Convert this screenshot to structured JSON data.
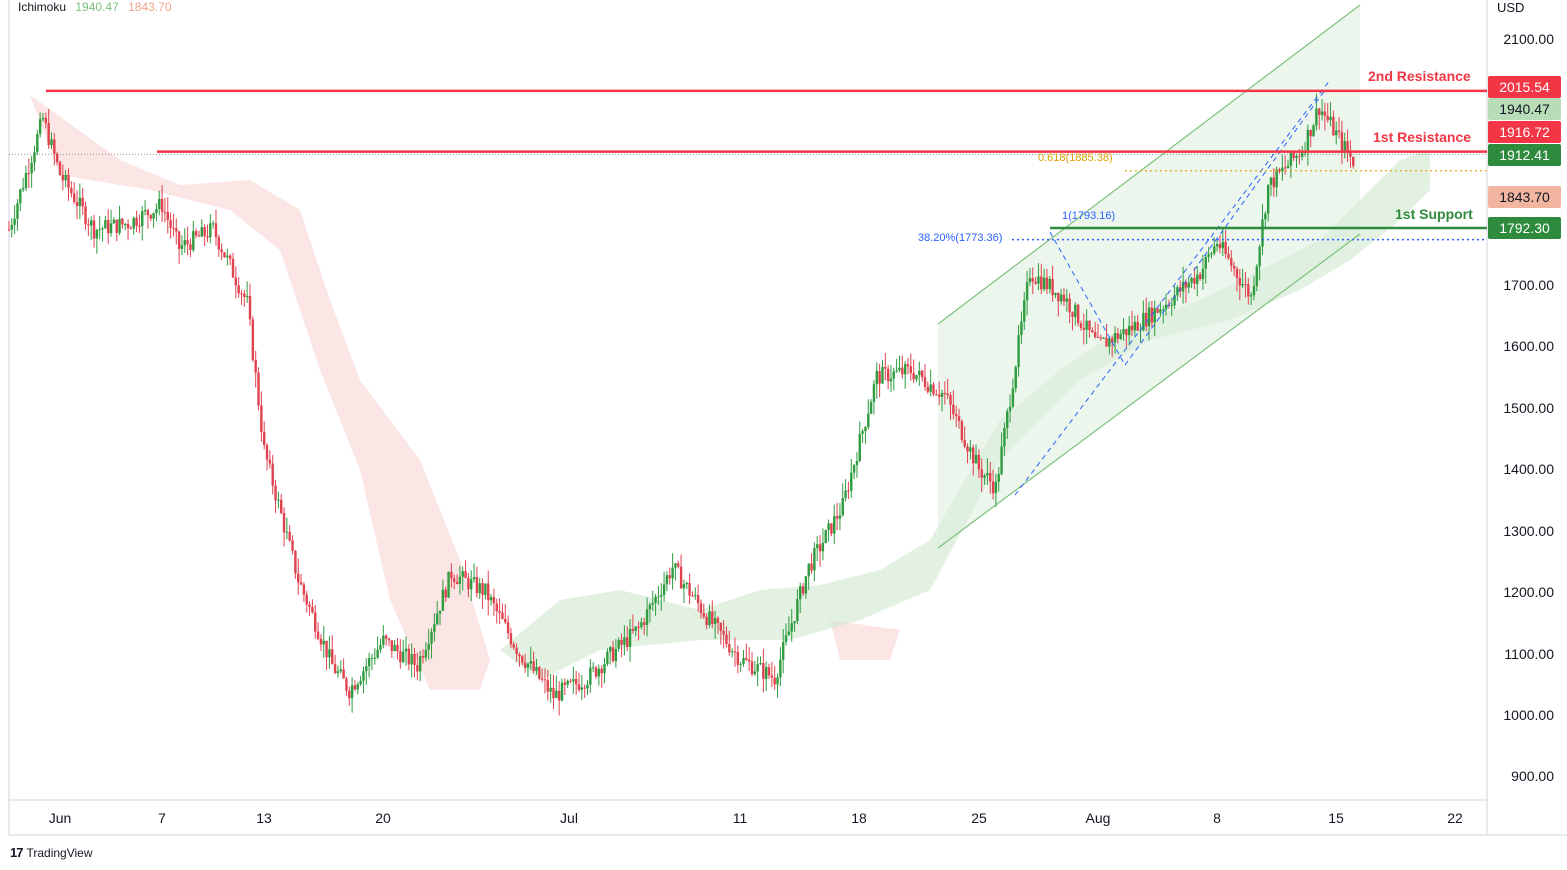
{
  "indicator": {
    "name": "Ichimoku",
    "value1": "1940.47",
    "value2": "1843.70"
  },
  "currency": "USD",
  "price_tags": [
    {
      "label": "2015.54",
      "bg": "#f23645",
      "fg": "#ffffff"
    },
    {
      "label": "1940.47",
      "bg": "#b8dcb8",
      "fg": "#131722"
    },
    {
      "label": "1916.72",
      "bg": "#f23645",
      "fg": "#ffffff"
    },
    {
      "label": "1912.41",
      "bg": "#2e8b3e",
      "fg": "#ffffff"
    },
    {
      "label": "1843.70",
      "bg": "#f2b5a0",
      "fg": "#131722"
    },
    {
      "label": "1792.30",
      "bg": "#2e8b3e",
      "fg": "#ffffff"
    }
  ],
  "levels": {
    "resistance2": {
      "label": "2nd Resistance",
      "value": 2015.54,
      "color": "#f23645"
    },
    "resistance1": {
      "label": "1st Resistance",
      "value": 1916.72,
      "color": "#f23645"
    },
    "support1": {
      "label": "1st Support",
      "value": 1792.3,
      "color": "#2e8b3e"
    }
  },
  "fib": {
    "f618": {
      "label": "0.618(1885.38)",
      "value": 1885.38,
      "color": "#e0a000"
    },
    "f382": {
      "label": "38.20%(1773.36)",
      "value": 1773.36,
      "color": "#2962ff"
    },
    "f1": {
      "label": "1(1793.16)",
      "value": 1793.16,
      "color": "#2962ff"
    }
  },
  "branding": {
    "logo_text": "TradingView"
  },
  "chart_data": {
    "type": "candlestick",
    "title": "",
    "ylabel": "USD",
    "ylim": [
      820,
      2150
    ],
    "y_ticks": [
      "2100.00",
      "1700.00",
      "1600.00",
      "1500.00",
      "1400.00",
      "1300.00",
      "1200.00",
      "1100.00",
      "1000.00",
      "900.00"
    ],
    "x_ticks": [
      "Jun",
      "7",
      "13",
      "20",
      "Jul",
      "11",
      "18",
      "25",
      "Aug",
      "8",
      "15",
      "22"
    ],
    "x_range": [
      "2022-05-29",
      "2022-08-24"
    ],
    "series": [
      {
        "kind": "close",
        "dates": [
          "2022-05-29",
          "2022-05-31",
          "2022-06-01",
          "2022-06-03",
          "2022-06-05",
          "2022-06-07",
          "2022-06-08",
          "2022-06-10",
          "2022-06-12",
          "2022-06-13",
          "2022-06-15",
          "2022-06-17",
          "2022-06-18",
          "2022-06-20",
          "2022-06-22",
          "2022-06-24",
          "2022-06-26",
          "2022-06-28",
          "2022-06-30",
          "2022-07-02",
          "2022-07-05",
          "2022-07-07",
          "2022-07-09",
          "2022-07-11",
          "2022-07-13",
          "2022-07-15",
          "2022-07-17",
          "2022-07-19",
          "2022-07-21",
          "2022-07-23",
          "2022-07-25",
          "2022-07-26",
          "2022-07-28",
          "2022-07-30",
          "2022-08-01",
          "2022-08-03",
          "2022-08-05",
          "2022-08-07",
          "2022-08-08",
          "2022-08-10",
          "2022-08-11",
          "2022-08-13",
          "2022-08-14",
          "2022-08-16"
        ],
        "values": [
          1790,
          1970,
          1880,
          1790,
          1800,
          1830,
          1760,
          1790,
          1670,
          1430,
          1220,
          1080,
          1040,
          1120,
          1080,
          1230,
          1200,
          1100,
          1030,
          1060,
          1140,
          1240,
          1160,
          1090,
          1060,
          1240,
          1340,
          1550,
          1560,
          1520,
          1400,
          1370,
          1720,
          1680,
          1600,
          1630,
          1670,
          1720,
          1770,
          1680,
          1860,
          1920,
          1990,
          1900
        ]
      }
    ],
    "ichimoku_cloud": "shown",
    "grid": false,
    "legend": "top-left"
  }
}
